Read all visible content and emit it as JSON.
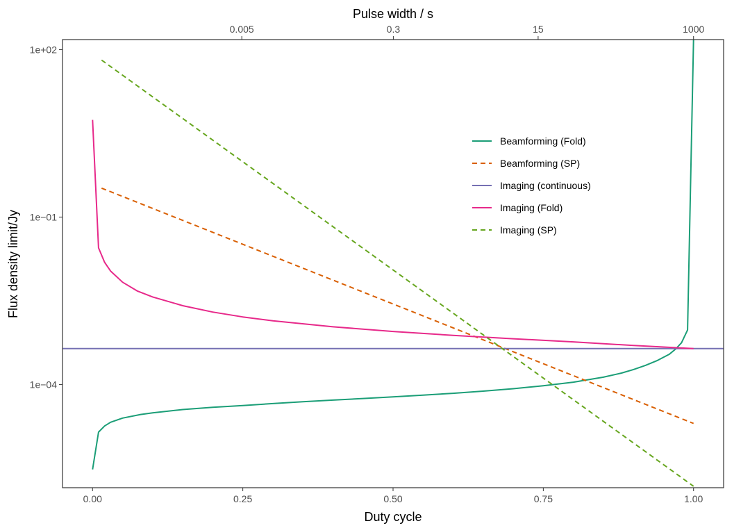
{
  "chart_data": {
    "type": "line",
    "xlabel": "Duty cycle",
    "ylabel": "Flux density limit/Jy",
    "top_axis_label": "Pulse width / s",
    "y_scale": "log10",
    "xlim": [
      -0.05,
      1.05
    ],
    "ylim_log10": [
      -5.85,
      2.18
    ],
    "x_ticks": [
      {
        "value": 0.0,
        "label": "0.00"
      },
      {
        "value": 0.25,
        "label": "0.25"
      },
      {
        "value": 0.5,
        "label": "0.50"
      },
      {
        "value": 0.75,
        "label": "0.75"
      },
      {
        "value": 1.0,
        "label": "1.00"
      }
    ],
    "y_ticks": [
      {
        "value": 100,
        "label": "1e+02"
      },
      {
        "value": 0.1,
        "label": "1e−01"
      },
      {
        "value": 0.0001,
        "label": "1e−04"
      }
    ],
    "top_ticks": [
      {
        "value": 0.005,
        "label": "0.005"
      },
      {
        "value": 0.3,
        "label": "0.3"
      },
      {
        "value": 15,
        "label": "15"
      },
      {
        "value": 1000,
        "label": "1000"
      }
    ],
    "top_axis_mapping": {
      "duty_cycle_at_1000s": 1.0,
      "duty_cycle_per_decade": 0.1418
    },
    "legend_position": "top-right inside plot",
    "series": [
      {
        "name": "Beamforming (Fold)",
        "color": "#1b9e77",
        "dash": "solid",
        "x": [
          0.0,
          0.01,
          0.02,
          0.03,
          0.05,
          0.08,
          0.1,
          0.15,
          0.2,
          0.25,
          0.3,
          0.35,
          0.4,
          0.45,
          0.5,
          0.55,
          0.6,
          0.65,
          0.7,
          0.75,
          0.8,
          0.85,
          0.88,
          0.9,
          0.92,
          0.94,
          0.96,
          0.97,
          0.98,
          0.99,
          1.0
        ],
        "y": [
          3e-06,
          1.4e-05,
          1.8e-05,
          2.1e-05,
          2.5e-05,
          2.9e-05,
          3.1e-05,
          3.55e-05,
          3.9e-05,
          4.2e-05,
          4.55e-05,
          4.9e-05,
          5.25e-05,
          5.6e-05,
          6e-05,
          6.45e-05,
          6.95e-05,
          7.6e-05,
          8.4e-05,
          9.5e-05,
          0.00011,
          0.000135,
          0.00016,
          0.000185,
          0.00022,
          0.00027,
          0.00035,
          0.00043,
          0.00056,
          0.00095,
          150
        ]
      },
      {
        "name": "Beamforming (SP)",
        "color": "#d95f02",
        "dash": "dashed",
        "x": [
          0.015,
          1.0
        ],
        "y": [
          0.33,
          2e-05
        ]
      },
      {
        "name": "Imaging (continuous)",
        "color": "#7570b3",
        "dash": "solid",
        "x": [
          -0.05,
          1.05
        ],
        "y": [
          0.00044,
          0.00044
        ]
      },
      {
        "name": "Imaging (Fold)",
        "color": "#e7298a",
        "dash": "solid",
        "x": [
          0.0,
          0.01,
          0.02,
          0.03,
          0.05,
          0.075,
          0.1,
          0.15,
          0.2,
          0.25,
          0.3,
          0.4,
          0.5,
          0.6,
          0.7,
          0.8,
          0.9,
          1.0
        ],
        "y": [
          5.5,
          0.028,
          0.0155,
          0.0108,
          0.0068,
          0.0047,
          0.0037,
          0.00258,
          0.00198,
          0.00162,
          0.00138,
          0.00108,
          0.00089,
          0.00076,
          0.00066,
          0.00058,
          0.0005,
          0.00044
        ]
      },
      {
        "name": "Imaging (SP)",
        "color": "#66a61e",
        "dash": "dashed",
        "x": [
          0.015,
          1.0
        ],
        "y": [
          65,
          1.5e-06
        ]
      }
    ]
  }
}
